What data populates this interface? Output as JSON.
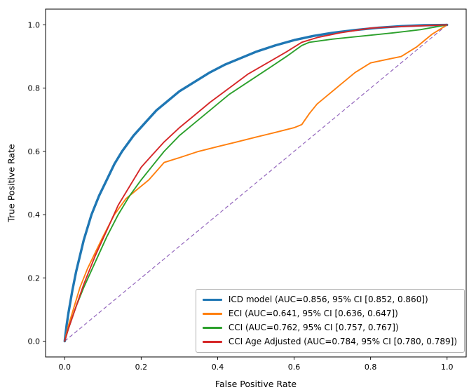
{
  "figure": {
    "background": "#ffffff"
  },
  "chart_data": {
    "type": "line",
    "title": "",
    "xlabel": "False Positive Rate",
    "ylabel": "True Positive Rate",
    "xlim": [
      0,
      1
    ],
    "ylim": [
      0,
      1
    ],
    "grid": false,
    "legend_position": "lower right",
    "x_tick_values": [
      0.0,
      0.2,
      0.4,
      0.6,
      0.8,
      1.0
    ],
    "x_tick_labels": [
      "0.0",
      "0.2",
      "0.4",
      "0.6",
      "0.8",
      "1.0"
    ],
    "y_tick_values": [
      0.0,
      0.2,
      0.4,
      0.6,
      0.8,
      1.0
    ],
    "y_tick_labels": [
      "0.0",
      "0.2",
      "0.4",
      "0.6",
      "0.8",
      "1.0"
    ],
    "reference_line": {
      "name": "chance-diagonal",
      "style": "dashed",
      "color": "#9467bd",
      "points": [
        [
          0,
          0
        ],
        [
          1,
          1
        ]
      ]
    },
    "series": [
      {
        "id": "icd-model",
        "name": "ICD model (AUC=0.856, 95% CI [0.852, 0.860])",
        "auc": 0.856,
        "ci": [
          0.852,
          0.86
        ],
        "color": "#1f77b4",
        "line_width": 3.4,
        "points": [
          [
            0,
            0
          ],
          [
            0.005,
            0.05
          ],
          [
            0.01,
            0.09
          ],
          [
            0.02,
            0.16
          ],
          [
            0.03,
            0.22
          ],
          [
            0.05,
            0.32
          ],
          [
            0.07,
            0.4
          ],
          [
            0.09,
            0.46
          ],
          [
            0.11,
            0.51
          ],
          [
            0.13,
            0.56
          ],
          [
            0.15,
            0.6
          ],
          [
            0.18,
            0.65
          ],
          [
            0.21,
            0.69
          ],
          [
            0.24,
            0.73
          ],
          [
            0.27,
            0.76
          ],
          [
            0.3,
            0.79
          ],
          [
            0.34,
            0.82
          ],
          [
            0.38,
            0.85
          ],
          [
            0.42,
            0.875
          ],
          [
            0.46,
            0.895
          ],
          [
            0.5,
            0.915
          ],
          [
            0.55,
            0.935
          ],
          [
            0.6,
            0.952
          ],
          [
            0.65,
            0.965
          ],
          [
            0.7,
            0.975
          ],
          [
            0.76,
            0.984
          ],
          [
            0.82,
            0.991
          ],
          [
            0.88,
            0.996
          ],
          [
            0.94,
            0.999
          ],
          [
            1,
            1
          ]
        ]
      },
      {
        "id": "eci",
        "name": "ECI (AUC=0.641, 95% CI [0.636, 0.647])",
        "auc": 0.641,
        "ci": [
          0.636,
          0.647
        ],
        "color": "#ff7f0e",
        "line_width": 1.9,
        "points": [
          [
            0,
            0
          ],
          [
            0.01,
            0.05
          ],
          [
            0.02,
            0.09
          ],
          [
            0.04,
            0.17
          ],
          [
            0.06,
            0.23
          ],
          [
            0.08,
            0.28
          ],
          [
            0.1,
            0.33
          ],
          [
            0.13,
            0.4
          ],
          [
            0.16,
            0.45
          ],
          [
            0.19,
            0.48
          ],
          [
            0.22,
            0.51
          ],
          [
            0.26,
            0.565
          ],
          [
            0.3,
            0.58
          ],
          [
            0.35,
            0.6
          ],
          [
            0.4,
            0.615
          ],
          [
            0.45,
            0.63
          ],
          [
            0.5,
            0.645
          ],
          [
            0.55,
            0.66
          ],
          [
            0.6,
            0.675
          ],
          [
            0.62,
            0.685
          ],
          [
            0.64,
            0.72
          ],
          [
            0.66,
            0.75
          ],
          [
            0.68,
            0.77
          ],
          [
            0.72,
            0.81
          ],
          [
            0.76,
            0.85
          ],
          [
            0.8,
            0.88
          ],
          [
            0.84,
            0.89
          ],
          [
            0.88,
            0.9
          ],
          [
            0.92,
            0.93
          ],
          [
            0.96,
            0.97
          ],
          [
            1,
            1
          ]
        ]
      },
      {
        "id": "cci",
        "name": "CCI (AUC=0.762, 95% CI [0.757, 0.767])",
        "auc": 0.762,
        "ci": [
          0.757,
          0.767
        ],
        "color": "#2ca02c",
        "line_width": 1.9,
        "points": [
          [
            0,
            0
          ],
          [
            0.01,
            0.04
          ],
          [
            0.03,
            0.11
          ],
          [
            0.05,
            0.17
          ],
          [
            0.08,
            0.25
          ],
          [
            0.11,
            0.33
          ],
          [
            0.14,
            0.4
          ],
          [
            0.17,
            0.46
          ],
          [
            0.2,
            0.51
          ],
          [
            0.23,
            0.555
          ],
          [
            0.26,
            0.6
          ],
          [
            0.3,
            0.65
          ],
          [
            0.34,
            0.69
          ],
          [
            0.38,
            0.73
          ],
          [
            0.43,
            0.78
          ],
          [
            0.48,
            0.82
          ],
          [
            0.53,
            0.86
          ],
          [
            0.58,
            0.9
          ],
          [
            0.62,
            0.935
          ],
          [
            0.64,
            0.945
          ],
          [
            0.7,
            0.955
          ],
          [
            0.78,
            0.965
          ],
          [
            0.86,
            0.975
          ],
          [
            0.93,
            0.985
          ],
          [
            1,
            1
          ]
        ]
      },
      {
        "id": "cci-age-adjusted",
        "name": "CCI Age Adjusted (AUC=0.784, 95% CI [0.780, 0.789])",
        "auc": 0.784,
        "ci": [
          0.78,
          0.789
        ],
        "color": "#d62728",
        "line_width": 1.9,
        "points": [
          [
            0,
            0
          ],
          [
            0.01,
            0.04
          ],
          [
            0.03,
            0.11
          ],
          [
            0.05,
            0.18
          ],
          [
            0.08,
            0.27
          ],
          [
            0.11,
            0.35
          ],
          [
            0.14,
            0.43
          ],
          [
            0.17,
            0.49
          ],
          [
            0.2,
            0.55
          ],
          [
            0.23,
            0.59
          ],
          [
            0.26,
            0.63
          ],
          [
            0.3,
            0.675
          ],
          [
            0.34,
            0.715
          ],
          [
            0.38,
            0.755
          ],
          [
            0.43,
            0.8
          ],
          [
            0.48,
            0.845
          ],
          [
            0.53,
            0.88
          ],
          [
            0.58,
            0.915
          ],
          [
            0.62,
            0.945
          ],
          [
            0.66,
            0.96
          ],
          [
            0.72,
            0.975
          ],
          [
            0.8,
            0.99
          ],
          [
            0.88,
            0.995
          ],
          [
            1,
            1
          ]
        ]
      }
    ]
  }
}
